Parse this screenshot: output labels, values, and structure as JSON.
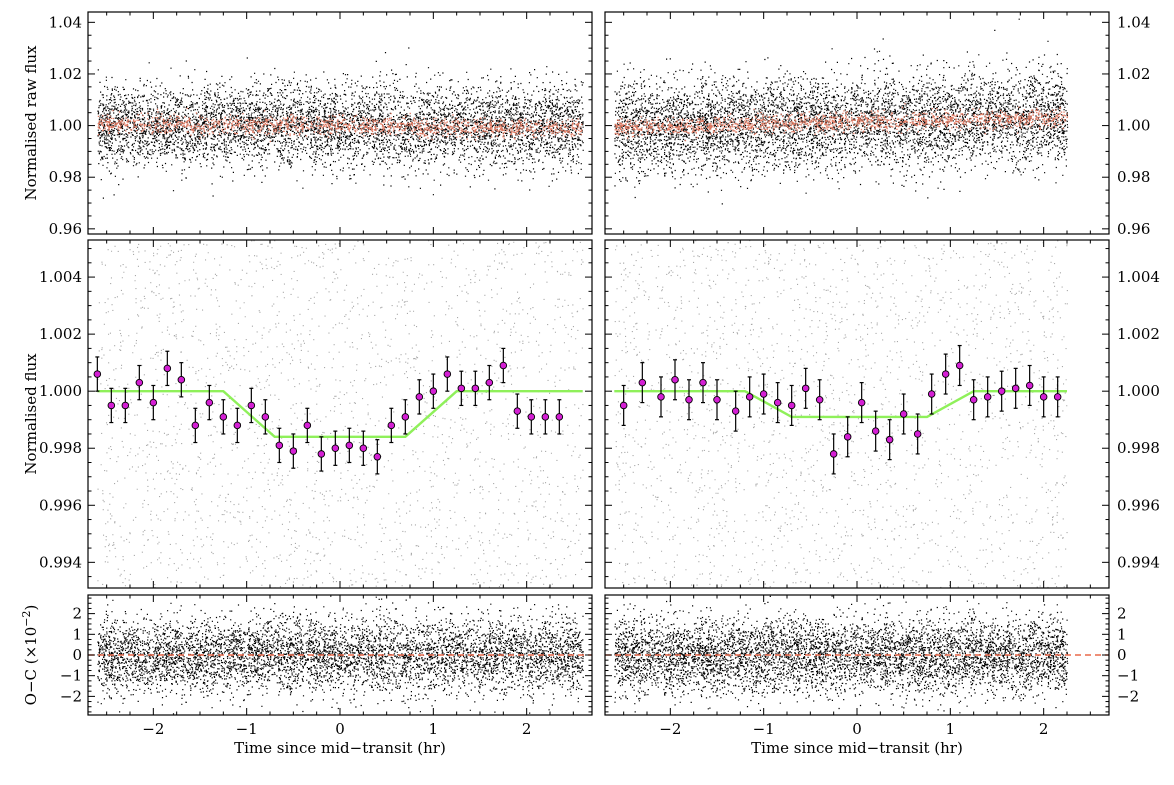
{
  "chart_data": [
    {
      "id": "left-raw",
      "type": "scatter",
      "ylabel": "Normalised raw flux",
      "xlim": [
        -2.7,
        2.7
      ],
      "ylim": [
        0.958,
        1.044
      ],
      "yticks": [
        0.96,
        0.98,
        1.0,
        1.02,
        1.04
      ],
      "ytick_labels": [
        "0.96",
        "0.98",
        "1.00",
        "1.02",
        "1.04"
      ],
      "yaxis_side": "left",
      "series": [
        {
          "name": "raw flux",
          "kind": "scatter",
          "color": "#000000",
          "x_range": [
            -2.6,
            2.6
          ],
          "center": 1.0,
          "spread": 0.008
        },
        {
          "name": "systematics model",
          "kind": "scatter",
          "color": "#e07a62",
          "x_range": [
            -2.6,
            2.6
          ],
          "center": 1.0,
          "slope": -0.0003,
          "spread": 0.0018
        }
      ]
    },
    {
      "id": "right-raw",
      "type": "scatter",
      "xlim": [
        -2.7,
        2.7
      ],
      "ylim": [
        0.958,
        1.044
      ],
      "yticks": [
        0.96,
        0.98,
        1.0,
        1.02,
        1.04
      ],
      "ytick_labels": [
        "0.96",
        "0.98",
        "1.00",
        "1.02",
        "1.04"
      ],
      "yaxis_side": "right",
      "series": [
        {
          "name": "raw flux",
          "kind": "scatter",
          "color": "#000000",
          "x_range": [
            -2.6,
            2.25
          ],
          "center": 1.0015,
          "slope": 0.0008,
          "spread": 0.009
        },
        {
          "name": "systematics model",
          "kind": "scatter",
          "color": "#e07a62",
          "x_range": [
            -2.6,
            2.25
          ],
          "center": 1.0015,
          "slope": 0.0008,
          "spread": 0.0018
        }
      ]
    },
    {
      "id": "left-detrended",
      "type": "scatter",
      "ylabel": "Normalised flux",
      "xlim": [
        -2.7,
        2.7
      ],
      "ylim": [
        0.9931,
        1.0053
      ],
      "yticks": [
        0.994,
        0.996,
        0.998,
        1.0,
        1.002,
        1.004
      ],
      "ytick_labels": [
        "0.994",
        "0.996",
        "0.998",
        "1.000",
        "1.002",
        "1.004"
      ],
      "yaxis_side": "left",
      "series": [
        {
          "name": "detrended flux",
          "kind": "scatter",
          "color": "#a8a8a8",
          "x_range": [
            -2.6,
            2.6
          ]
        },
        {
          "name": "transit model",
          "kind": "line",
          "color": "#8ff05a",
          "x": [
            -2.6,
            -1.25,
            -0.7,
            0.7,
            1.25,
            2.6
          ],
          "y": [
            1.0,
            1.0,
            0.9984,
            0.9984,
            1.0,
            1.0
          ]
        },
        {
          "name": "binned flux",
          "kind": "errorbar",
          "color": "#d41fd4",
          "yerr": 0.0006,
          "x": [
            -2.6,
            -2.45,
            -2.3,
            -2.15,
            -2.0,
            -1.85,
            -1.7,
            -1.55,
            -1.4,
            -1.25,
            -1.1,
            -0.95,
            -0.8,
            -0.65,
            -0.5,
            -0.35,
            -0.2,
            -0.05,
            0.1,
            0.25,
            0.4,
            0.55,
            0.7,
            0.85,
            1.0,
            1.15,
            1.3,
            1.45,
            1.6,
            1.75,
            1.9,
            2.05,
            2.2,
            2.35
          ],
          "y": [
            1.0006,
            0.9995,
            0.9995,
            1.0003,
            0.9996,
            1.0008,
            1.0004,
            0.9988,
            0.9996,
            0.9991,
            0.9988,
            0.9995,
            0.9991,
            0.9981,
            0.9979,
            0.9988,
            0.9978,
            0.998,
            0.9981,
            0.998,
            0.9977,
            0.9988,
            0.9991,
            0.9998,
            1.0,
            1.0006,
            1.0001,
            1.0001,
            1.0003,
            1.0009,
            0.9993,
            0.9991,
            0.9991,
            0.9991
          ]
        }
      ]
    },
    {
      "id": "right-detrended",
      "type": "scatter",
      "xlim": [
        -2.7,
        2.7
      ],
      "ylim": [
        0.9931,
        1.0053
      ],
      "yticks": [
        0.994,
        0.996,
        0.998,
        1.0,
        1.002,
        1.004
      ],
      "ytick_labels": [
        "0.994",
        "0.996",
        "0.998",
        "1.000",
        "1.002",
        "1.004"
      ],
      "yaxis_side": "right",
      "series": [
        {
          "name": "detrended flux",
          "kind": "scatter",
          "color": "#a8a8a8",
          "x_range": [
            -2.6,
            2.25
          ]
        },
        {
          "name": "transit model",
          "kind": "line",
          "color": "#8ff05a",
          "x": [
            -2.6,
            -1.2,
            -0.7,
            0.75,
            1.25,
            2.25
          ],
          "y": [
            1.0,
            1.0,
            0.9991,
            0.9991,
            1.0,
            1.0
          ]
        },
        {
          "name": "binned flux",
          "kind": "errorbar",
          "color": "#d41fd4",
          "yerr": 0.0007,
          "x": [
            -2.5,
            -2.3,
            -2.1,
            -1.95,
            -1.8,
            -1.65,
            -1.5,
            -1.3,
            -1.15,
            -1.0,
            -0.85,
            -0.7,
            -0.55,
            -0.4,
            -0.25,
            -0.1,
            0.05,
            0.2,
            0.35,
            0.5,
            0.65,
            0.8,
            0.95,
            1.1,
            1.25,
            1.4,
            1.55,
            1.7,
            1.85,
            2.0,
            2.15
          ],
          "y": [
            0.9995,
            1.0003,
            0.9998,
            1.0004,
            0.9997,
            1.0003,
            0.9997,
            0.9993,
            0.9998,
            0.9999,
            0.9996,
            0.9995,
            1.0001,
            0.9997,
            0.9978,
            0.9984,
            0.9996,
            0.9986,
            0.9983,
            0.9992,
            0.9985,
            0.9999,
            1.0006,
            1.0009,
            0.9997,
            0.9998,
            1.0,
            1.0001,
            1.0002,
            0.9998,
            0.9998
          ]
        }
      ]
    },
    {
      "id": "left-residuals",
      "type": "scatter",
      "ylabel": "O−C (×10",
      "ylabel_exp": "−2",
      "ylabel_close": ")",
      "xlabel": "Time since mid−transit (hr)",
      "xlim": [
        -2.7,
        2.7
      ],
      "ylim": [
        -2.9,
        2.9
      ],
      "yticks": [
        -2,
        -1,
        0,
        1,
        2
      ],
      "ytick_labels": [
        "−2",
        "−1",
        "0",
        "1",
        "2"
      ],
      "xticks": [
        -2,
        -1,
        0,
        1,
        2
      ],
      "xtick_labels": [
        "−2",
        "−1",
        "0",
        "1",
        "2"
      ],
      "yaxis_side": "left",
      "series": [
        {
          "name": "residuals",
          "kind": "scatter",
          "color": "#000000",
          "x_range": [
            -2.6,
            2.6
          ],
          "center": 0,
          "spread": 0.9
        },
        {
          "name": "zero line",
          "kind": "dashed-line",
          "color": "#e8684a",
          "y": 0
        }
      ]
    },
    {
      "id": "right-residuals",
      "type": "scatter",
      "xlabel": "Time since mid−transit (hr)",
      "xlim": [
        -2.7,
        2.7
      ],
      "ylim": [
        -2.9,
        2.9
      ],
      "yticks": [
        -2,
        -1,
        0,
        1,
        2
      ],
      "ytick_labels": [
        "−2",
        "−1",
        "0",
        "1",
        "2"
      ],
      "xticks": [
        -2,
        -1,
        0,
        1,
        2
      ],
      "xtick_labels": [
        "−2",
        "−1",
        "0",
        "1",
        "2"
      ],
      "yaxis_side": "right",
      "series": [
        {
          "name": "residuals",
          "kind": "scatter",
          "color": "#000000",
          "x_range": [
            -2.6,
            2.25
          ],
          "center": 0,
          "spread": 0.9
        },
        {
          "name": "zero line",
          "kind": "dashed-line",
          "color": "#e8684a",
          "y": 0
        }
      ]
    }
  ]
}
